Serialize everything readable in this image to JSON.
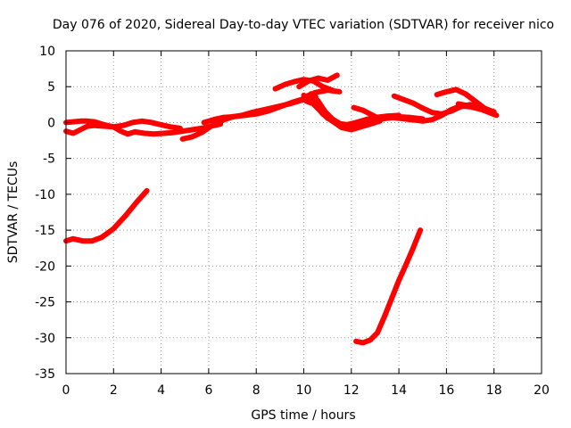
{
  "chart_data": {
    "type": "line",
    "title": "Day 076 of 2020, Sidereal Day-to-day VTEC variation (SDTVAR) for receiver nico",
    "xlabel": "GPS time / hours",
    "ylabel": "SDTVAR / TECUs",
    "xlim": [
      0,
      20
    ],
    "ylim": [
      -35,
      10
    ],
    "xticks": [
      0,
      2,
      4,
      6,
      8,
      10,
      12,
      14,
      16,
      18,
      20
    ],
    "yticks": [
      -35,
      -30,
      -25,
      -20,
      -15,
      -10,
      -5,
      0,
      5,
      10
    ],
    "grid": true,
    "line_color": "#ff0000",
    "series": [
      {
        "name": "s1",
        "x": [
          0.0,
          0.3,
          0.7,
          1.1,
          1.5,
          2.0,
          2.5,
          3.0,
          3.4
        ],
        "y": [
          -16.5,
          -16.2,
          -16.5,
          -16.5,
          -16.0,
          -14.8,
          -13.0,
          -11.0,
          -9.5
        ]
      },
      {
        "name": "s2",
        "x": [
          12.2,
          12.5,
          12.8,
          13.1,
          13.4,
          13.7,
          14.0,
          14.3,
          14.6,
          14.9
        ],
        "y": [
          -30.5,
          -30.7,
          -30.3,
          -29.3,
          -27.0,
          -24.5,
          -22.0,
          -19.8,
          -17.5,
          -15.0
        ]
      },
      {
        "name": "s3",
        "x": [
          0.0,
          0.3,
          0.6,
          0.9,
          1.2,
          1.6,
          2.0,
          2.4,
          2.8,
          3.2,
          3.6,
          4.0,
          4.4,
          4.8
        ],
        "y": [
          -1.2,
          -1.5,
          -1.0,
          -0.5,
          -0.4,
          -0.5,
          -0.6,
          -0.4,
          0.0,
          0.2,
          0.0,
          -0.3,
          -0.6,
          -0.8
        ]
      },
      {
        "name": "s4",
        "x": [
          0.0,
          0.3,
          0.6,
          0.9,
          1.2,
          1.6,
          2.0,
          2.3,
          2.6,
          2.9
        ],
        "y": [
          0.0,
          0.1,
          0.2,
          0.2,
          0.1,
          -0.3,
          -0.6,
          -1.2,
          -1.6,
          -1.3
        ]
      },
      {
        "name": "s5",
        "x": [
          2.9,
          3.3,
          3.7,
          4.1,
          4.5,
          4.9,
          5.3,
          5.7,
          6.1,
          6.5
        ],
        "y": [
          -1.3,
          -1.5,
          -1.6,
          -1.5,
          -1.4,
          -1.2,
          -1.0,
          -0.8,
          -0.5,
          -0.2
        ]
      },
      {
        "name": "s6",
        "x": [
          4.9,
          5.3,
          5.7,
          6.1,
          6.5,
          7.0,
          7.5,
          8.0,
          8.5,
          9.0,
          9.5,
          10.0,
          10.5
        ],
        "y": [
          -2.3,
          -2.0,
          -1.4,
          -0.5,
          0.2,
          0.8,
          1.0,
          1.2,
          1.6,
          2.2,
          2.8,
          3.3,
          3.6
        ]
      },
      {
        "name": "s7",
        "x": [
          5.8,
          6.2,
          6.6,
          7.0,
          7.4,
          7.8,
          8.2,
          8.6,
          9.0,
          9.4,
          9.8,
          10.2
        ],
        "y": [
          0.0,
          0.4,
          0.7,
          0.8,
          1.0,
          1.4,
          1.7,
          2.0,
          2.3,
          2.6,
          3.0,
          3.4
        ]
      },
      {
        "name": "s8",
        "x": [
          8.8,
          9.2,
          9.6,
          10.0,
          10.4,
          10.8,
          11.2
        ],
        "y": [
          4.7,
          5.3,
          5.7,
          6.0,
          5.8,
          5.0,
          4.5
        ]
      },
      {
        "name": "s9",
        "x": [
          9.8,
          10.2,
          10.6,
          11.0,
          11.4
        ],
        "y": [
          5.0,
          5.8,
          6.2,
          5.9,
          6.6
        ]
      },
      {
        "name": "s10",
        "x": [
          10.0,
          10.5,
          11.0,
          11.5
        ],
        "y": [
          3.5,
          4.2,
          4.5,
          4.3
        ]
      },
      {
        "name": "s11",
        "x": [
          10.3,
          10.6,
          10.9,
          11.2,
          11.6,
          12.0,
          12.5,
          13.0,
          13.5,
          14.0,
          14.5,
          15.0
        ],
        "y": [
          4.0,
          3.0,
          1.5,
          0.5,
          -0.3,
          -0.6,
          -0.2,
          0.3,
          0.6,
          0.8,
          0.7,
          0.5
        ]
      },
      {
        "name": "s12",
        "x": [
          10.1,
          10.4,
          10.7,
          11.0,
          11.4,
          11.8,
          12.2,
          12.6,
          13.0,
          13.5,
          14.0
        ],
        "y": [
          3.0,
          2.6,
          1.6,
          0.6,
          -0.1,
          -0.3,
          0.0,
          0.4,
          0.7,
          0.9,
          1.0
        ]
      },
      {
        "name": "s13",
        "x": [
          10.0,
          10.4,
          10.8,
          11.2,
          11.6,
          12.0,
          12.4,
          12.8,
          13.2
        ],
        "y": [
          3.8,
          2.8,
          1.2,
          0.2,
          -0.7,
          -1.0,
          -0.6,
          -0.2,
          0.2
        ]
      },
      {
        "name": "s14",
        "x": [
          12.1,
          12.5,
          12.9,
          13.2
        ],
        "y": [
          2.1,
          1.7,
          1.0,
          0.5
        ]
      },
      {
        "name": "s15",
        "x": [
          13.5,
          14.0,
          14.5,
          15.0,
          15.4,
          15.8,
          16.2,
          16.6,
          17.0,
          17.5,
          18.0
        ],
        "y": [
          0.8,
          0.6,
          0.4,
          0.2,
          0.4,
          1.0,
          1.8,
          2.3,
          2.2,
          1.8,
          1.2
        ]
      },
      {
        "name": "s16",
        "x": [
          13.8,
          14.2,
          14.6,
          15.0,
          15.4,
          15.8,
          16.2,
          16.6,
          17.0,
          17.5,
          18.0
        ],
        "y": [
          3.7,
          3.2,
          2.7,
          2.0,
          1.4,
          1.2,
          1.6,
          2.2,
          2.5,
          2.1,
          1.5
        ]
      },
      {
        "name": "s17",
        "x": [
          15.6,
          16.0,
          16.4,
          16.8,
          17.2,
          17.6,
          18.0
        ],
        "y": [
          3.9,
          4.3,
          4.6,
          4.0,
          3.0,
          2.0,
          1.4
        ]
      },
      {
        "name": "s18",
        "x": [
          16.5,
          17.0,
          17.5,
          18.1
        ],
        "y": [
          2.6,
          2.3,
          1.8,
          1.0
        ]
      }
    ]
  }
}
